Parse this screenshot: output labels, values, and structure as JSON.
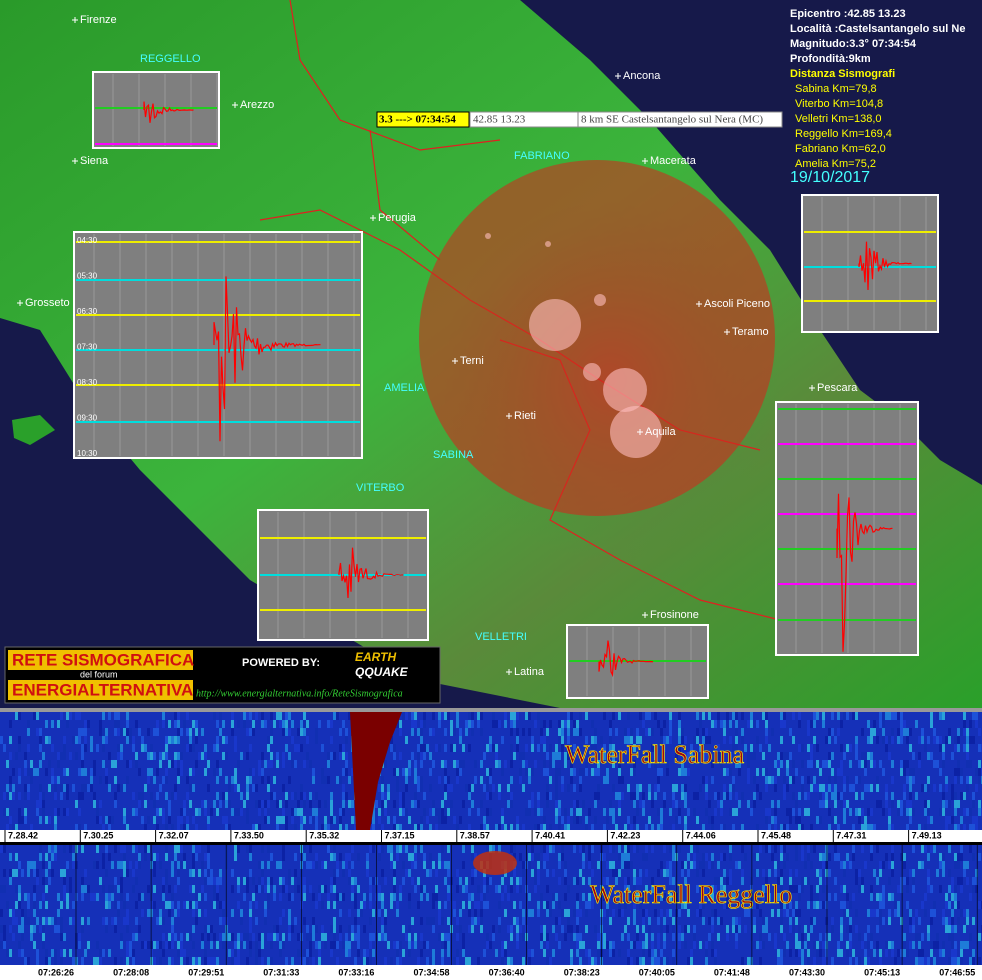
{
  "info": {
    "epicentre": "Epicentro :42.85 13.23",
    "locality": "Località :Castelsantangelo sul Ne",
    "magnitude": "Magnitudo:3.3° 07:34:54",
    "depth": "Profondità:9km",
    "distances_title": "Distanza Sismografi",
    "distances": [
      "Sabina Km=79,8",
      "Viterbo Km=104,8",
      "Velletri Km=138,0",
      "Reggello Km=169,4",
      "Fabriano Km=62,0",
      "Amelia Km=75,2"
    ],
    "date": "19/10/2017"
  },
  "event_bar": {
    "magnitude_time": "3.3 ---> 07:34:54",
    "coords": "42.85 13.23",
    "location": "8 km SE Castelsantangelo sul Nera (MC)"
  },
  "stations": [
    "REGGELLO",
    "FABRIANO",
    "AMELIA",
    "SABINA",
    "VITERBO",
    "VELLETRI"
  ],
  "cities": [
    "Firenze",
    "Arezzo",
    "Siena",
    "Perugia",
    "Grosseto",
    "Ancona",
    "Macerata",
    "Ascoli Piceno",
    "Teramo",
    "Terni",
    "Rieti",
    "Aquila",
    "Pescara",
    "Frosinone",
    "Latina"
  ],
  "trace_times": [
    "04:30",
    "05:30",
    "06:30",
    "07:30",
    "08:30",
    "09:30",
    "10:30"
  ],
  "logo": {
    "line1": "RETE SISMOGRAFICA",
    "line2": "del forum",
    "line3": "ENERGIALTERNATIVA",
    "powered": "POWERED BY:",
    "brand1": "EARTH",
    "brand2": "QQUAKE",
    "url": "http://www.energialternativa.info/ReteSismografica"
  },
  "waterfalls": [
    {
      "title": "WaterFall Sabina",
      "times": [
        "7.28.42",
        "7.30.25",
        "7.32.07",
        "7.33.50",
        "7.35.32",
        "7.37.15",
        "7.38.57",
        "7.40.41",
        "7.42.23",
        "7.44.06",
        "7.45.48",
        "7.47.31",
        "7.49.13"
      ]
    },
    {
      "title": "WaterFall Reggello",
      "times": [
        "07:26:26",
        "07:28:08",
        "07:29:51",
        "07:31:33",
        "07:33:16",
        "07:34:58",
        "07:36:40",
        "07:38:23",
        "07:40:05",
        "07:41:48",
        "07:43:30",
        "07:45:13",
        "07:46:55"
      ]
    }
  ]
}
